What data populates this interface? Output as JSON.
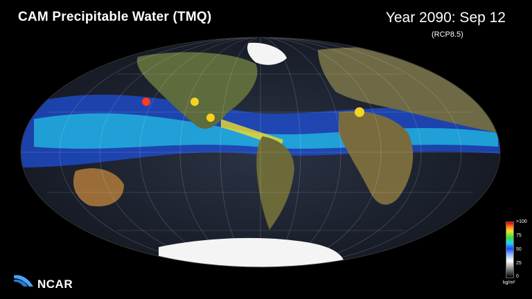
{
  "title": "CAM Precipitable  Water (TMQ)",
  "date_label": "Year  2090:  Sep  12",
  "scenario": "(RCP8.5)",
  "logo_text": "NCAR",
  "colorbar": {
    "ticks": [
      ">100",
      "75",
      "50",
      "25",
      "0"
    ],
    "unit": "kg/m²",
    "colors": [
      "#000000",
      "#ffffff",
      "#1e4cff",
      "#1fd3ff",
      "#3adf3a",
      "#f3e32c",
      "#ff7a1a",
      "#d00000"
    ]
  },
  "map": {
    "projection": "mollweide",
    "ocean_color": "#1a2233",
    "land_color": "#5f6a3a",
    "ice_color": "#f4f4f4"
  }
}
